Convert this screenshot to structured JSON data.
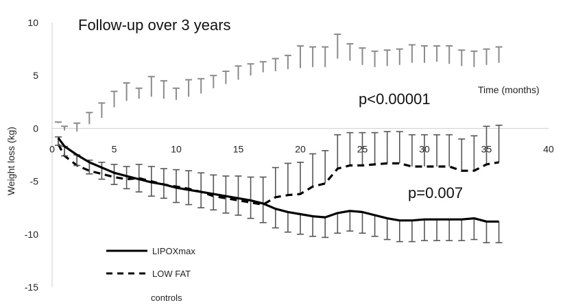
{
  "chart_data": {
    "type": "line",
    "title": "Follow-up over 3 years",
    "xlabel": "Time (months)",
    "ylabel": "Weight loss (kg)",
    "xlim": [
      0,
      40
    ],
    "ylim": [
      -15,
      10
    ],
    "xticks": [
      0,
      5,
      10,
      15,
      20,
      25,
      30,
      35,
      40
    ],
    "yticks": [
      10,
      5,
      0,
      -5,
      -10,
      -15
    ],
    "grid": false,
    "legend_position": "bottom-left",
    "annotations": [
      "p<0.00001",
      "p=0.007"
    ],
    "legend_extra": "controls",
    "series": [
      {
        "name": "LIPOXmax",
        "style": "solid",
        "x": [
          0.5,
          1,
          2,
          3,
          4,
          5,
          6,
          7,
          8,
          9,
          10,
          11,
          12,
          13,
          14,
          15,
          16,
          17,
          18,
          19,
          20,
          21,
          22,
          23,
          24,
          25,
          26,
          27,
          28,
          29,
          30,
          31,
          32,
          33,
          34,
          35,
          36
        ],
        "y": [
          -0.9,
          -1.7,
          -2.5,
          -3.2,
          -3.7,
          -4.2,
          -4.5,
          -4.8,
          -5.1,
          -5.3,
          -5.6,
          -5.8,
          -6.0,
          -6.2,
          -6.4,
          -6.6,
          -6.8,
          -7.1,
          -7.6,
          -7.9,
          -8.1,
          -8.3,
          -8.4,
          -8.0,
          -7.8,
          -7.9,
          -8.2,
          -8.5,
          -8.7,
          -8.7,
          -8.6,
          -8.6,
          -8.6,
          -8.6,
          -8.5,
          -8.8,
          -8.8
        ],
        "error_down": [
          0.7,
          0.9,
          1.0,
          1.1,
          1.1,
          1.1,
          1.2,
          1.2,
          1.3,
          1.3,
          1.4,
          1.4,
          1.5,
          1.5,
          1.6,
          1.6,
          1.7,
          1.8,
          1.8,
          1.9,
          1.9,
          1.9,
          1.9,
          1.9,
          1.9,
          2.0,
          2.0,
          2.0,
          2.0,
          2.0,
          2.0,
          2.0,
          2.0,
          2.0,
          2.0,
          2.0,
          2.0
        ]
      },
      {
        "name": "LOW FAT",
        "style": "dashed",
        "x": [
          0.5,
          1,
          2,
          3,
          4,
          5,
          6,
          7,
          8,
          9,
          10,
          11,
          12,
          13,
          14,
          15,
          16,
          17,
          18,
          19,
          20,
          21,
          22,
          23,
          24,
          25,
          26,
          27,
          28,
          29,
          30,
          31,
          32,
          33,
          34,
          35,
          36
        ],
        "y": [
          -1.5,
          -2.6,
          -3.5,
          -4.0,
          -4.3,
          -4.6,
          -4.8,
          -4.7,
          -5.0,
          -5.3,
          -5.5,
          -5.7,
          -6.0,
          -6.4,
          -6.6,
          -6.8,
          -7.0,
          -7.2,
          -6.5,
          -6.3,
          -6.2,
          -5.5,
          -5.2,
          -3.8,
          -3.5,
          -3.5,
          -3.4,
          -3.3,
          -3.3,
          -3.6,
          -3.6,
          -3.6,
          -3.6,
          -4.0,
          -4.0,
          -3.4,
          -3.2
        ],
        "error_up": [
          0.7,
          0.9,
          1.0,
          1.0,
          1.1,
          1.2,
          1.2,
          1.3,
          1.4,
          1.5,
          1.6,
          1.7,
          1.8,
          2.0,
          2.1,
          2.3,
          2.4,
          2.6,
          2.8,
          3.0,
          3.0,
          3.1,
          3.1,
          3.2,
          3.1,
          3.1,
          3.0,
          3.0,
          3.0,
          3.0,
          3.0,
          3.0,
          3.0,
          3.0,
          3.3,
          3.6,
          3.5
        ]
      },
      {
        "name": "controls",
        "style": "error-bars-only",
        "x": [
          0.5,
          1,
          2,
          3,
          4,
          5,
          6,
          7,
          8,
          9,
          10,
          11,
          12,
          13,
          14,
          15,
          16,
          17,
          18,
          19,
          20,
          21,
          22,
          23,
          24,
          25,
          26,
          27,
          28,
          29,
          30,
          31,
          32,
          33,
          34,
          35,
          36
        ],
        "y": [
          0.5,
          -0.2,
          -0.3,
          0.4,
          1.0,
          2.0,
          2.6,
          2.8,
          3.0,
          2.8,
          2.7,
          3.0,
          3.3,
          3.8,
          4.2,
          4.6,
          5.0,
          5.3,
          5.4,
          5.6,
          5.7,
          5.8,
          5.8,
          6.6,
          6.4,
          6.0,
          5.8,
          5.9,
          6.0,
          6.2,
          6.2,
          6.3,
          6.1,
          5.9,
          5.8,
          6.0,
          6.2
        ],
        "error_up": [
          0.1,
          0.4,
          0.8,
          1.1,
          1.4,
          1.5,
          1.7,
          1.0,
          1.9,
          1.7,
          1.1,
          1.6,
          1.4,
          1.2,
          1.2,
          1.3,
          1.1,
          1.0,
          1.2,
          1.3,
          2.1,
          1.9,
          1.9,
          2.3,
          1.6,
          1.6,
          1.5,
          1.5,
          1.5,
          1.7,
          1.6,
          1.5,
          1.7,
          1.5,
          1.5,
          1.5,
          1.5
        ]
      }
    ]
  }
}
